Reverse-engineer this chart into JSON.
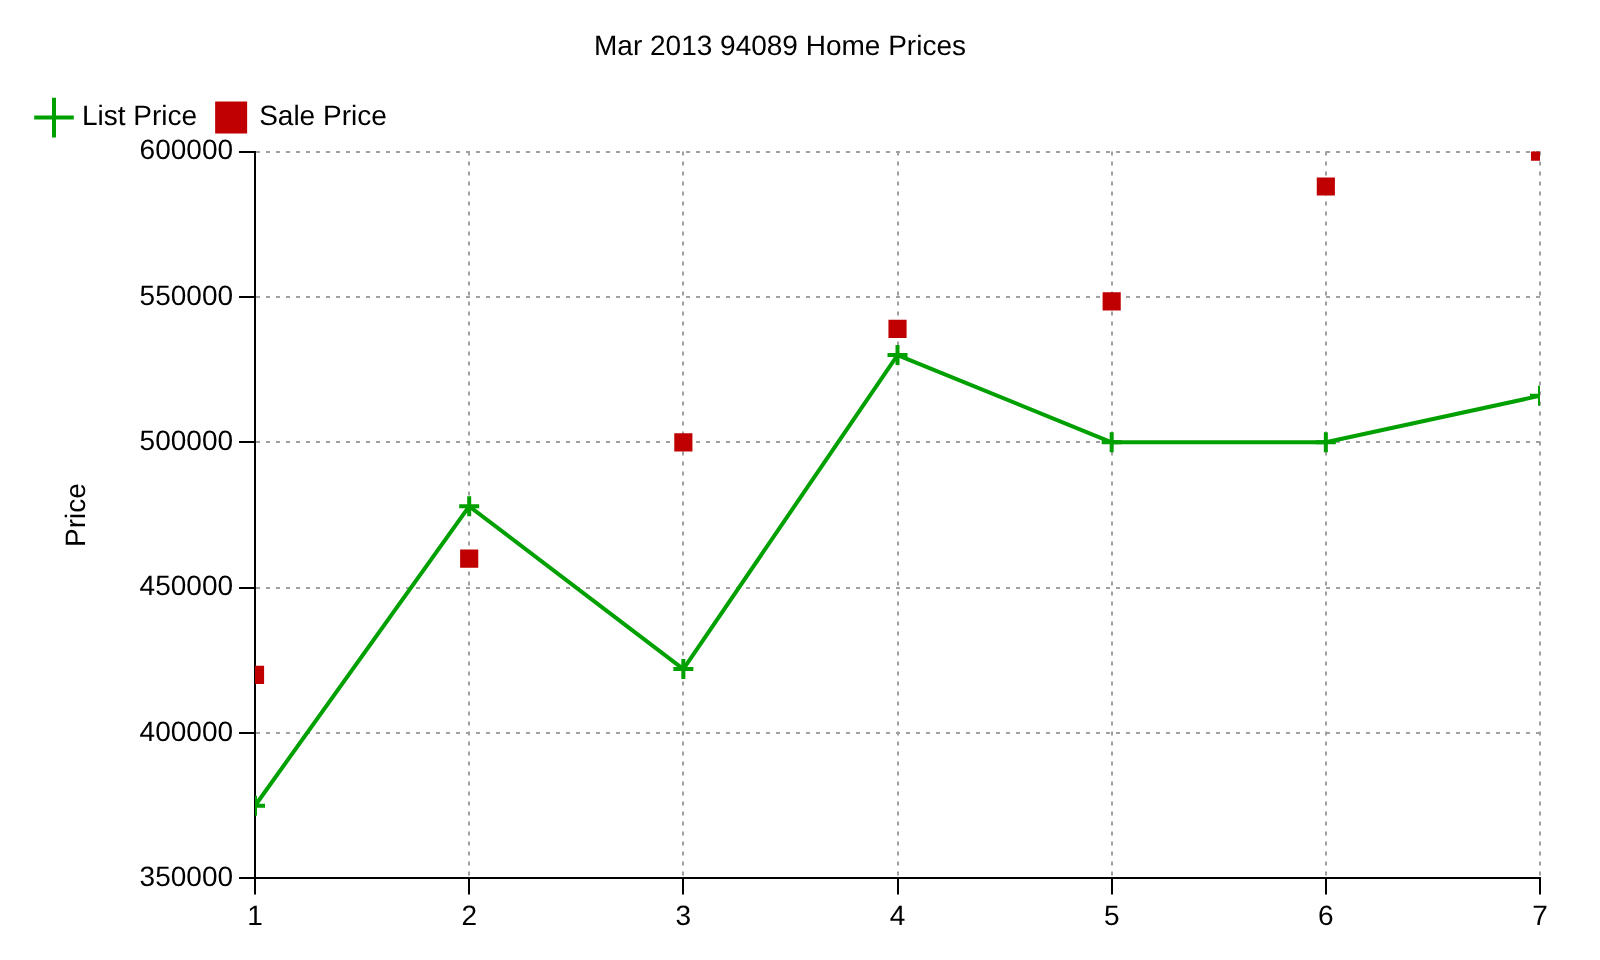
{
  "chart_data": {
    "type": "line",
    "title": "Mar 2013 94089 Home Prices",
    "ylabel": "Price",
    "x": [
      1,
      2,
      3,
      4,
      5,
      6,
      7
    ],
    "xlim": [
      1,
      7
    ],
    "xticks": [
      1,
      2,
      3,
      4,
      5,
      6,
      7
    ],
    "ylim": [
      350000,
      600000
    ],
    "yticks": [
      350000,
      400000,
      450000,
      500000,
      550000,
      600000
    ],
    "grid": true,
    "legend": "top left",
    "series": [
      {
        "name": "List Price",
        "color": "#00a000",
        "marker": "cross",
        "values": [
          375000,
          478000,
          422000,
          530000,
          500000,
          500000,
          516000
        ]
      },
      {
        "name": "Sale Price",
        "type": "scatter",
        "color": "#c00000",
        "marker": "square",
        "values": [
          420000,
          460000,
          500000,
          539000,
          548500,
          588000,
          600000
        ]
      }
    ]
  }
}
